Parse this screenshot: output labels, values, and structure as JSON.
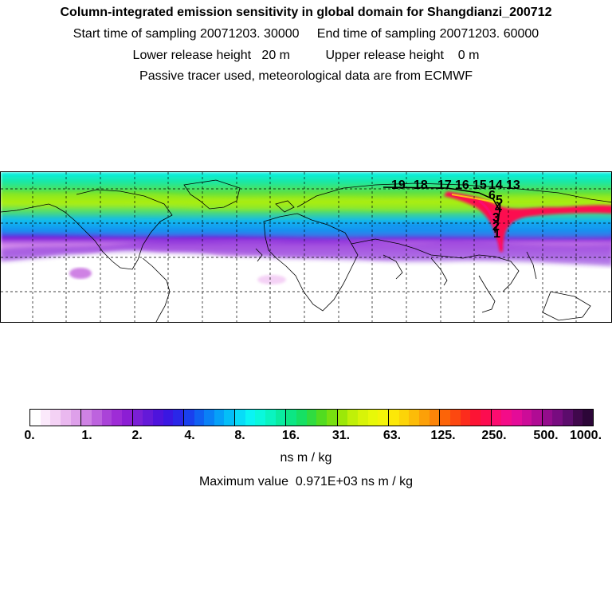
{
  "header": {
    "title": "Column-integrated emission sensitivity in global domain for Shangdianzi_200712",
    "line2": "Start time of sampling 20071203. 30000     End time of sampling 20071203. 60000",
    "line3": "Lower release height   20 m          Upper release height    0 m",
    "line4": "Passive tracer used, meteorological data are from ECMWF"
  },
  "map": {
    "footprint_labels": [
      "19",
      "18",
      "17",
      "16",
      "15",
      "14",
      "13",
      "6",
      "5",
      "4",
      "3",
      "2",
      "1"
    ]
  },
  "colorbar": {
    "tick_labels": [
      "0.",
      "1.",
      "2.",
      "4.",
      "8.",
      "16.",
      "31.",
      "63.",
      "125.",
      "250.",
      "500.",
      "1000."
    ],
    "colors": [
      "#ffffff",
      "#fbe9fb",
      "#f4d2f5",
      "#eab8ef",
      "#dea0ea",
      "#cf82e4",
      "#bd63de",
      "#aa43d8",
      "#9e2cd6",
      "#8c1ed4",
      "#7a1fd6",
      "#6419d8",
      "#4e13dc",
      "#3a17e2",
      "#2a27e8",
      "#1a40ee",
      "#1060f2",
      "#0a80f6",
      "#06a0f8",
      "#04bef8",
      "#08dcf8",
      "#0af4f4",
      "#0af8dc",
      "#0af4c0",
      "#0aeca0",
      "#0ce684",
      "#16e064",
      "#30dc40",
      "#52dc20",
      "#78e010",
      "#9ce808",
      "#c0f008",
      "#d8f408",
      "#e8f808",
      "#f4f408",
      "#fce808",
      "#fcd408",
      "#fcbc08",
      "#fca008",
      "#fc8408",
      "#fc6408",
      "#fc4810",
      "#fc2c1c",
      "#fc1434",
      "#fc0c50",
      "#fc0c70",
      "#f40c88",
      "#e40c98",
      "#cc0c98",
      "#b00c94",
      "#940c8c",
      "#780c80",
      "#5c0c6c",
      "#40084c",
      "#2c0638"
    ],
    "unit": "ns m / kg",
    "max_text": "Maximum value  0.971E+03 ns m / kg"
  }
}
